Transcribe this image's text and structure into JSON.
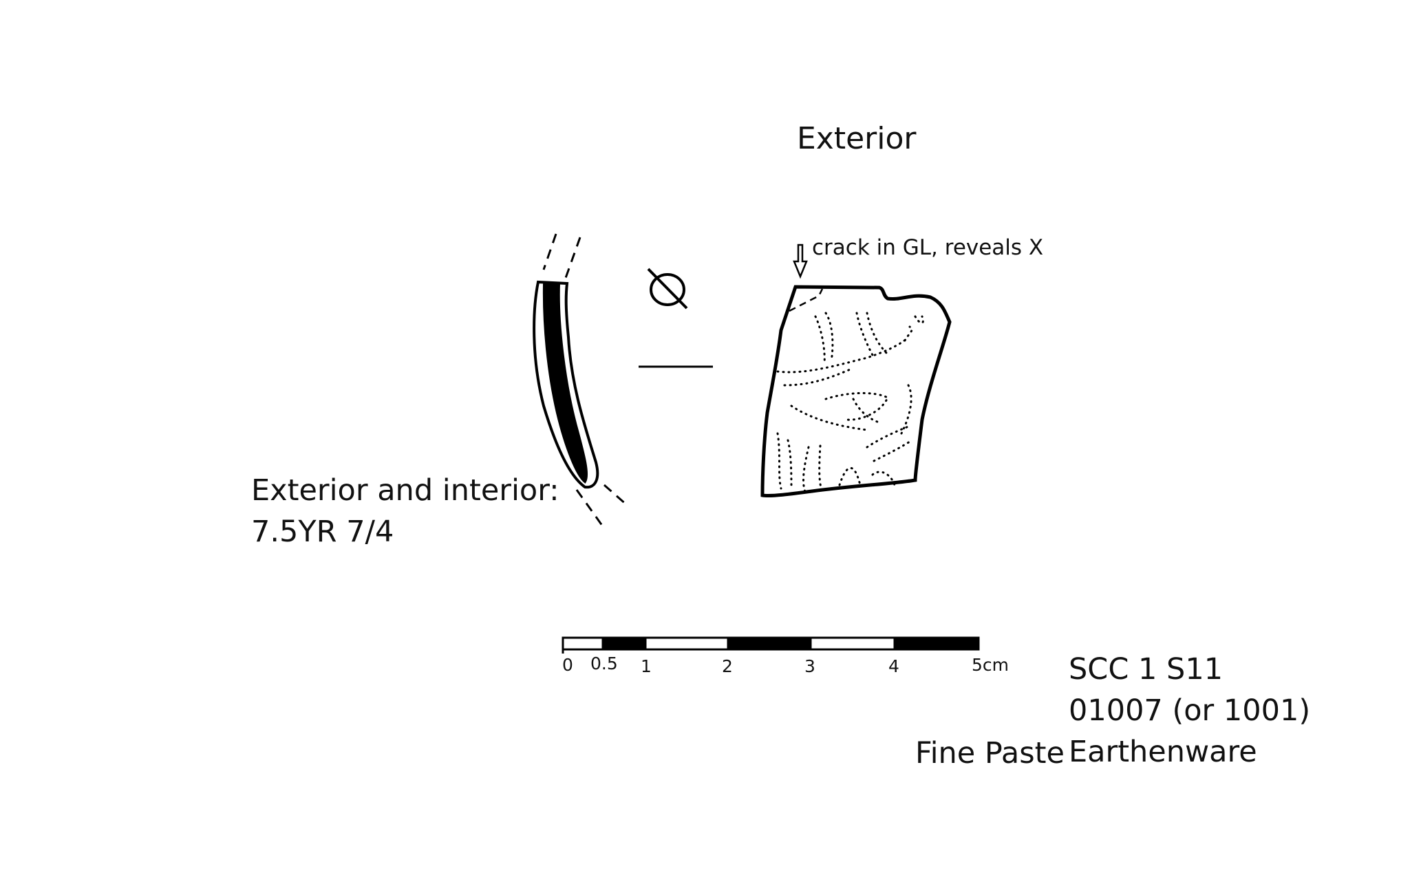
{
  "title": "Exterior",
  "crack_note": "crack in GL, reveals X",
  "color_label": "Exterior and interior:",
  "munsell_color": "7.5YR 7/4",
  "sample_id": "SCC 1 S11",
  "catalog_no": "01007 (or 1001)",
  "ware_type": "Earthenware",
  "paste": "Fine Paste",
  "scale": {
    "ticks": [
      "0",
      "0.5",
      "1",
      "2",
      "3",
      "4",
      "5cm"
    ],
    "segments": [
      "white",
      "black",
      "white",
      "black",
      "white",
      "black"
    ]
  }
}
